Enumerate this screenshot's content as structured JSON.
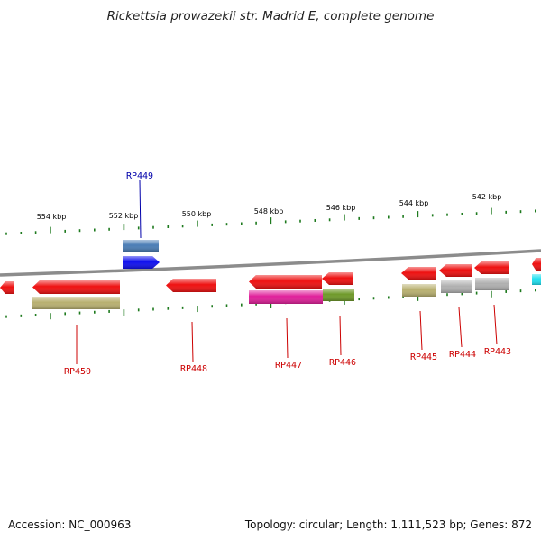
{
  "title": "Rickettsia prowazekii str. Madrid E, complete genome",
  "footer": {
    "accession": "Accession: NC_000963",
    "summary": "Topology: circular; Length: 1,111,523 bp; Genes: 872"
  },
  "colors": {
    "backbone": "#8c8c8c",
    "ticks": "#1e7a1e",
    "gene_label": "#cc0000",
    "highlight_label": "#0000aa"
  },
  "scale_labels": [
    "554 kbp",
    "552 kbp",
    "550 kbp",
    "548 kbp",
    "546 kbp",
    "544 kbp",
    "542 kbp"
  ],
  "genes": [
    {
      "label": "RP449",
      "strand": "+",
      "color": "#1010ee",
      "highlight": true
    },
    {
      "label": "RP450",
      "strand": "-",
      "color": "#ee1111"
    },
    {
      "label": "RP448",
      "strand": "-",
      "color": "#ee1111"
    },
    {
      "label": "RP447",
      "strand": "-",
      "color": "#ee1111"
    },
    {
      "label": "RP446",
      "strand": "-",
      "color": "#ee1111"
    },
    {
      "label": "RP445",
      "strand": "-",
      "color": "#ee1111"
    },
    {
      "label": "RP444",
      "strand": "-",
      "color": "#ee1111"
    },
    {
      "label": "RP443",
      "strand": "-",
      "color": "#ee1111"
    }
  ],
  "cog_features": [
    {
      "name": "steel-blue",
      "color": "#4a7db5"
    },
    {
      "name": "olive-tan",
      "color": "#b8b070"
    },
    {
      "name": "magenta",
      "color": "#e0209a"
    },
    {
      "name": "olive-green",
      "color": "#6f9a2a"
    },
    {
      "name": "olive-tan",
      "color": "#b8b070"
    },
    {
      "name": "grey",
      "color": "#b0b0b0"
    },
    {
      "name": "grey",
      "color": "#b0b0b0"
    },
    {
      "name": "cyan",
      "color": "#20e0f0"
    }
  ]
}
